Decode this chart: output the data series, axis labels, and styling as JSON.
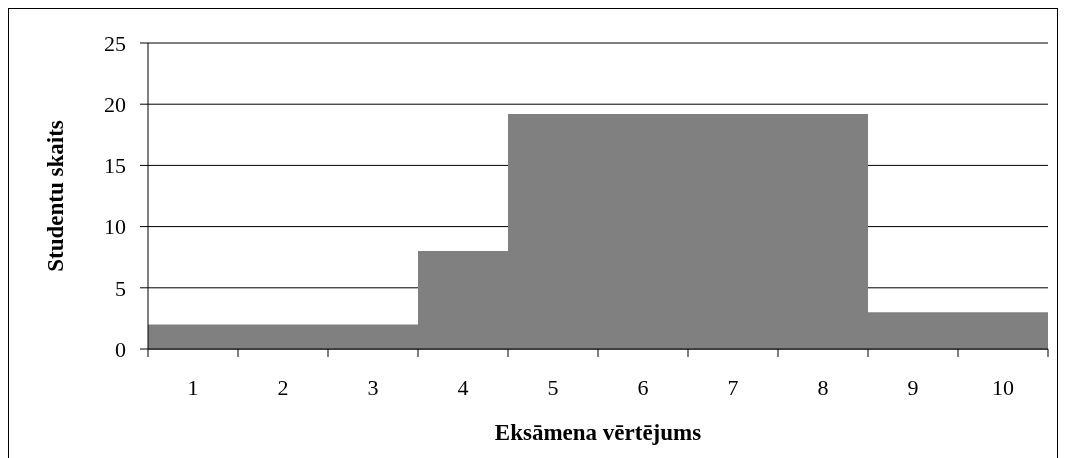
{
  "chart_data": {
    "type": "bar",
    "categories": [
      "1",
      "2",
      "3",
      "4",
      "5",
      "6",
      "7",
      "8",
      "9",
      "10"
    ],
    "values": [
      2,
      2,
      2,
      8,
      19.2,
      19.2,
      19.2,
      19.2,
      3,
      3
    ],
    "color": "#808080",
    "xlabel": "Eksāmena vērtējums",
    "ylabel": "Studentu skaits",
    "ylim": [
      0,
      25
    ],
    "yticks": [
      0,
      5,
      10,
      15,
      20,
      25
    ],
    "grid": "y"
  }
}
